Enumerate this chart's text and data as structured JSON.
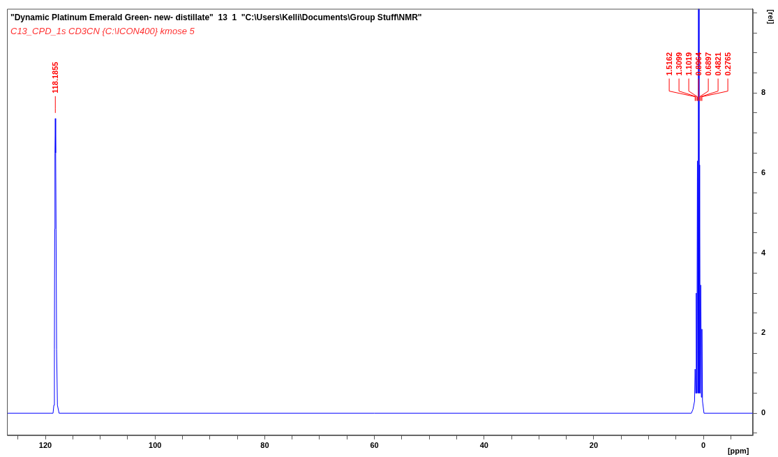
{
  "chart_data": {
    "type": "line",
    "title": "\"Dynamic Platinum Emerald Green- new- distillate\"  13  1  \"C:\\Users\\Kelli\\Documents\\Group Stuff\\NMR\"",
    "subtitle": "C13_CPD_1s CD3CN {C:\\ICON400} kmose 5",
    "xlabel": "[ppm]",
    "ylabel": "[rel]",
    "series": [
      {
        "color": "#0000ff",
        "x": [
          127,
          119,
          118.6,
          118.45,
          118.35,
          118.3,
          118.25,
          118.19,
          118.12,
          118.05,
          117.95,
          117.8,
          117.5,
          60,
          2.2,
          1.9,
          1.62,
          1.5162,
          1.41,
          1.3099,
          1.2,
          1.1019,
          1.0,
          0.8964,
          0.79,
          0.6897,
          0.59,
          0.4821,
          0.38,
          0.2765,
          0.17,
          -0.1,
          -9
        ],
        "values": [
          0,
          0,
          0,
          0.2,
          1.6,
          4.6,
          6.5,
          7.36,
          6.5,
          4.6,
          1.6,
          0.2,
          0,
          0,
          0,
          0.1,
          0.3,
          1.1,
          0.5,
          3.0,
          0.5,
          6.3,
          0.5,
          10.1,
          0.5,
          6.2,
          0.5,
          3.2,
          0.4,
          2.1,
          0.3,
          0,
          0
        ]
      }
    ],
    "annotations": [
      {
        "text": "118.1855",
        "x": 118.1855,
        "y": 7.36
      },
      {
        "text": "1.5162",
        "x": 1.5162,
        "y": 7.8
      },
      {
        "text": "1.3099",
        "x": 1.3099,
        "y": 7.8
      },
      {
        "text": "1.1019",
        "x": 1.1019,
        "y": 7.8
      },
      {
        "text": "0.8964",
        "x": 0.8964,
        "y": 7.8
      },
      {
        "text": "0.6897",
        "x": 0.6897,
        "y": 7.8
      },
      {
        "text": "0.4821",
        "x": 0.4821,
        "y": 7.8
      },
      {
        "text": "0.2765",
        "x": 0.2765,
        "y": 7.8
      }
    ],
    "xlim": [
      127,
      -9
    ],
    "xticks": [
      {
        "value": 125,
        "label": null
      },
      120,
      {
        "value": 115,
        "label": null
      },
      {
        "value": 110,
        "label": null
      },
      {
        "value": 105,
        "label": null
      },
      100,
      {
        "value": 95,
        "label": null
      },
      {
        "value": 90,
        "label": null
      },
      {
        "value": 85,
        "label": null
      },
      80,
      {
        "value": 75,
        "label": null
      },
      {
        "value": 70,
        "label": null
      },
      {
        "value": 65,
        "label": null
      },
      60,
      {
        "value": 55,
        "label": null
      },
      {
        "value": 50,
        "label": null
      },
      {
        "value": 45,
        "label": null
      },
      40,
      {
        "value": 35,
        "label": null
      },
      {
        "value": 30,
        "label": null
      },
      {
        "value": 25,
        "label": null
      },
      20,
      {
        "value": 15,
        "label": null
      },
      {
        "value": 10,
        "label": null
      },
      {
        "value": 5,
        "label": null
      },
      0,
      {
        "value": -5,
        "label": null
      }
    ],
    "ylim": [
      -0.55,
      10.1
    ],
    "yticks": [
      {
        "value": -0.5,
        "label": null
      },
      0,
      {
        "value": 0.5,
        "label": null
      },
      {
        "value": 1,
        "label": null
      },
      {
        "value": 1.5,
        "label": null
      },
      2,
      {
        "value": 2.5,
        "label": null
      },
      {
        "value": 3,
        "label": null
      },
      {
        "value": 3.5,
        "label": null
      },
      4,
      {
        "value": 4.5,
        "label": null
      },
      {
        "value": 5,
        "label": null
      },
      {
        "value": 5.5,
        "label": null
      },
      6,
      {
        "value": 6.5,
        "label": null
      },
      {
        "value": 7,
        "label": null
      },
      {
        "value": 7.5,
        "label": null
      },
      8,
      {
        "value": 8.5,
        "label": null
      },
      {
        "value": 9,
        "label": null
      },
      {
        "value": 9.5,
        "label": null
      },
      {
        "value": 10,
        "label": null
      }
    ],
    "marker": "none",
    "line_style": "solid"
  }
}
